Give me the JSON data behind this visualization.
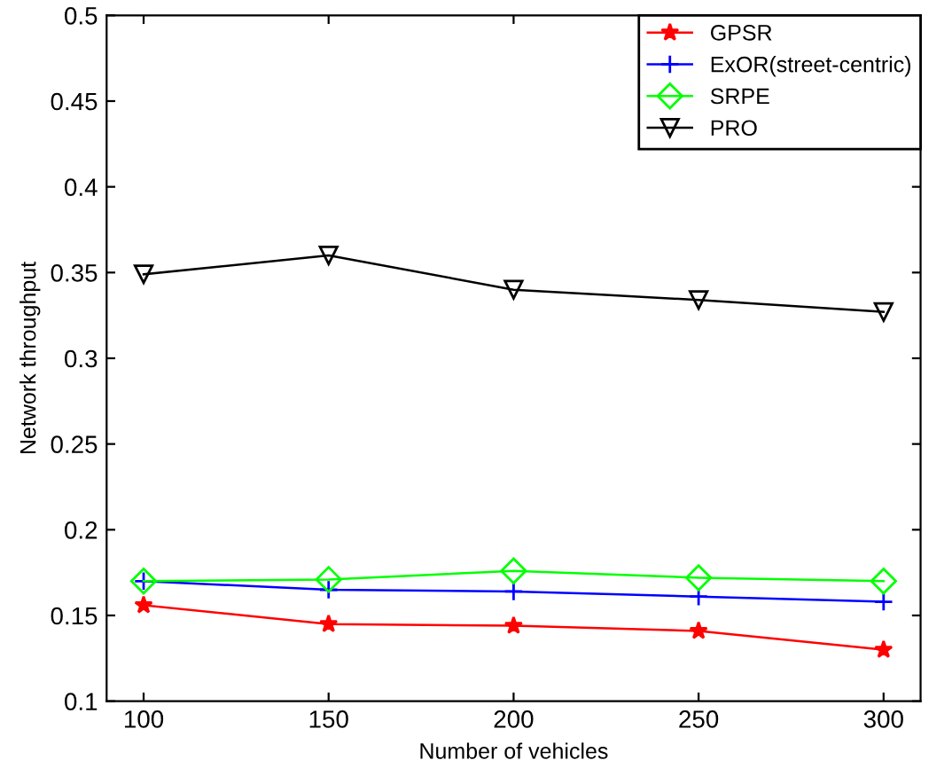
{
  "chart_data": {
    "type": "line",
    "xlabel": "Number of vehicles",
    "ylabel": "Network throughput",
    "x": [
      100,
      150,
      200,
      250,
      300
    ],
    "series": [
      {
        "name": "GPSR",
        "color": "#ff0000",
        "marker": "star",
        "values": [
          0.156,
          0.145,
          0.144,
          0.141,
          0.13
        ]
      },
      {
        "name": "ExOR(street-centric)",
        "color": "#0000ff",
        "marker": "cross",
        "values": [
          0.17,
          0.165,
          0.164,
          0.161,
          0.158
        ]
      },
      {
        "name": "SRPE",
        "color": "#00ff00",
        "marker": "diamond",
        "values": [
          0.17,
          0.171,
          0.176,
          0.172,
          0.17
        ]
      },
      {
        "name": "PRO",
        "color": "#000000",
        "marker": "triangle",
        "values": [
          0.349,
          0.36,
          0.34,
          0.334,
          0.327
        ]
      }
    ],
    "xlim": [
      90,
      310
    ],
    "ylim": [
      0.1,
      0.5
    ],
    "xticks": [
      100,
      150,
      200,
      250,
      300
    ],
    "yticks": [
      {
        "value": 0.1,
        "label": "0.1"
      },
      {
        "value": 0.15,
        "label": "0.15"
      },
      {
        "value": 0.2,
        "label": "0.2"
      },
      {
        "value": 0.25,
        "label": "0.25"
      },
      {
        "value": 0.3,
        "label": "0.3"
      },
      {
        "value": 0.35,
        "label": "0.35"
      },
      {
        "value": 0.4,
        "label": "0.4"
      },
      {
        "value": 0.45,
        "label": "0.45"
      },
      {
        "value": 0.5,
        "label": "0.5"
      }
    ],
    "legend": "top right",
    "grid": false,
    "line_style": "solid"
  }
}
